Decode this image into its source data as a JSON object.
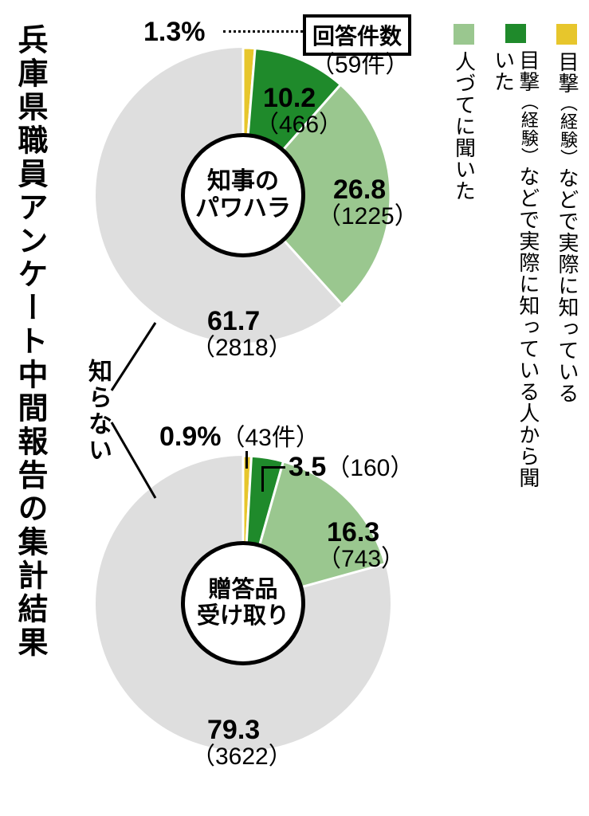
{
  "title": "兵庫県職員アンケート中間報告の集計結果",
  "legend": {
    "items": [
      {
        "color": "#e7c62c",
        "label_a": "目撃",
        "label_paren": "（経験）",
        "label_b": "などで実際に知っている"
      },
      {
        "color": "#1f8a2b",
        "label_a": "目撃",
        "label_paren": "（経験）",
        "label_b": "などで実際に知っている人から聞いた"
      },
      {
        "color": "#9ac78f",
        "label_a": "",
        "label_paren": "",
        "label_b": "人づてに聞いた"
      }
    ]
  },
  "shared_gray_label": "知らない",
  "response_box_label": "回答件数",
  "chart1": {
    "center_line1": "知事の",
    "center_line2": "パワハラ",
    "colors": {
      "bg": "#dedede",
      "seg1": "#e7c62c",
      "seg2": "#1f8a2b",
      "seg3": "#9ac78f",
      "stroke": "#ffffff"
    },
    "radius": 185,
    "inner_radius": 78,
    "data": {
      "seg1_pct": 1.3,
      "seg1_cnt": "59件",
      "seg2_pct": 10.2,
      "seg2_cnt": "466",
      "seg3_pct": 26.8,
      "seg3_cnt": "1225",
      "seg4_pct": 61.7,
      "seg4_cnt": "2818"
    },
    "labels": {
      "seg1_pct": "1.3%",
      "seg1_cnt_paren": "（59件）",
      "seg2_pct": "10.2",
      "seg2_cnt_paren": "（466）",
      "seg3_pct": "26.8",
      "seg3_cnt_paren": "（1225）",
      "seg4_pct": "61.7",
      "seg4_cnt_paren": "（2818）"
    }
  },
  "chart2": {
    "center_line1": "贈答品",
    "center_line2": "受け取り",
    "colors": {
      "bg": "#dedede",
      "seg1": "#e7c62c",
      "seg2": "#1f8a2b",
      "seg3": "#9ac78f",
      "stroke": "#ffffff"
    },
    "radius": 185,
    "inner_radius": 78,
    "data": {
      "seg1_pct": 0.9,
      "seg1_cnt": "43件",
      "seg2_pct": 3.5,
      "seg2_cnt": "160",
      "seg3_pct": 16.3,
      "seg3_cnt": "743",
      "seg4_pct": 79.3,
      "seg4_cnt": "3622"
    },
    "labels": {
      "seg1_pct": "0.9%",
      "seg1_cnt_paren": "（43件）",
      "seg2_pct": "3.5",
      "seg2_cnt_paren": "（160）",
      "seg3_pct": "16.3",
      "seg3_cnt_paren": "（743）",
      "seg4_pct": "79.3",
      "seg4_cnt_paren": "（3622）"
    }
  },
  "font": {
    "title_size": 38,
    "center_size": 30,
    "pct_size": 34,
    "cnt_size": 30
  }
}
